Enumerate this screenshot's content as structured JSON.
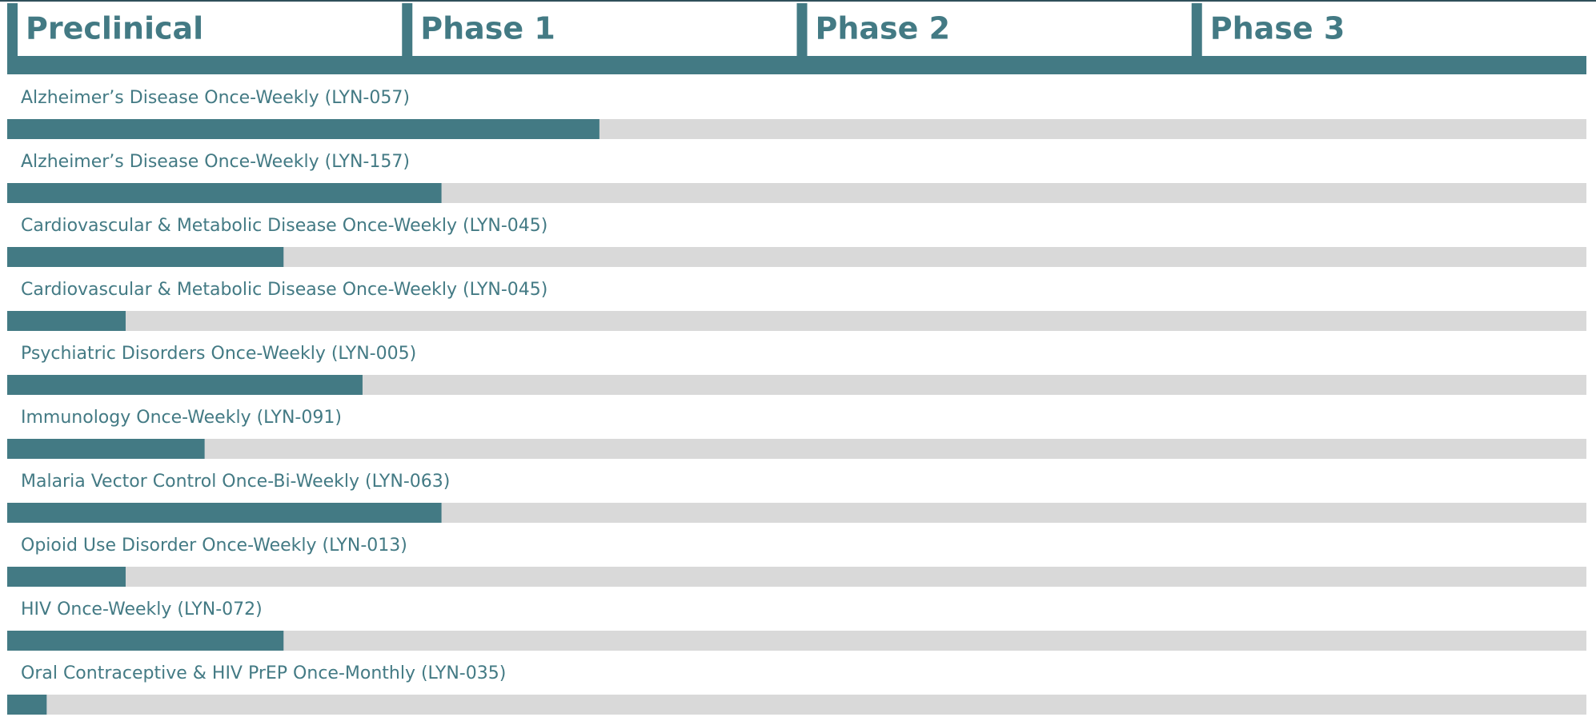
{
  "chart_data": {
    "type": "bar",
    "orientation": "horizontal",
    "categories": [
      "Alzheimer’s Disease Once-Weekly (LYN-057)",
      "Alzheimer’s Disease Once-Weekly (LYN-157)",
      "Cardiovascular & Metabolic Disease Once-Weekly (LYN-045)",
      "Cardiovascular & Metabolic Disease Once-Weekly (LYN-045)",
      "Psychiatric Disorders Once-Weekly (LYN-005)",
      "Immunology Once-Weekly (LYN-091)",
      "Malaria Vector Control Once-Bi-Weekly (LYN-063)",
      "Opioid Use Disorder Once-Weekly (LYN-013)",
      "HIV Once-Weekly (LYN-072)",
      "Oral Contraceptive & HIV PrEP Once-Monthly (LYN-035)"
    ],
    "values": [
      1.5,
      1.1,
      0.7,
      0.3,
      0.9,
      0.5,
      1.1,
      0.3,
      0.7,
      0.1
    ],
    "xlim": [
      0,
      4
    ],
    "xticks": [
      {
        "value": 0,
        "label": "Preclinical"
      },
      {
        "value": 1,
        "label": "Phase 1"
      },
      {
        "value": 2,
        "label": "Phase 2"
      },
      {
        "value": 3,
        "label": "Phase 3"
      }
    ],
    "color": "#437a84",
    "track_color": "#d9d9d9"
  }
}
